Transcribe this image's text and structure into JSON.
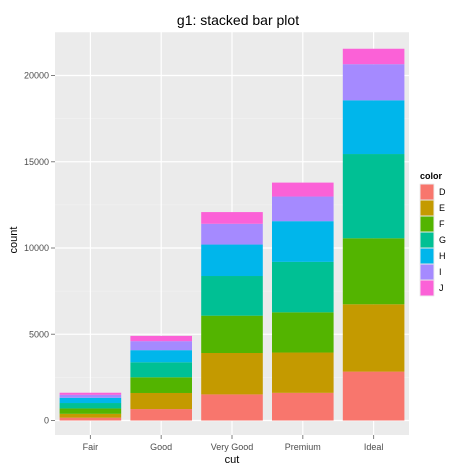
{
  "chart_data": {
    "type": "bar",
    "stacked": true,
    "title": "g1: stacked bar plot",
    "xlabel": "cut",
    "ylabel": "count",
    "categories": [
      "Fair",
      "Good",
      "Very Good",
      "Premium",
      "Ideal"
    ],
    "ylim": [
      0,
      22500
    ],
    "yticks": [
      0,
      5000,
      10000,
      15000,
      20000
    ],
    "ytick_labels": [
      "0",
      "5000",
      "10000",
      "15000",
      "20000"
    ],
    "grid": true,
    "legend_title": "color",
    "legend_position": "right",
    "series": [
      {
        "name": "D",
        "color": "#F8766D",
        "values": [
          163,
          662,
          1513,
          1603,
          2834
        ]
      },
      {
        "name": "E",
        "color": "#C49A00",
        "values": [
          224,
          933,
          2400,
          2337,
          3903
        ]
      },
      {
        "name": "F",
        "color": "#53B400",
        "values": [
          312,
          909,
          2164,
          2331,
          3826
        ]
      },
      {
        "name": "G",
        "color": "#00C094",
        "values": [
          314,
          871,
          2299,
          2924,
          4884
        ]
      },
      {
        "name": "H",
        "color": "#00B6EB",
        "values": [
          303,
          702,
          1824,
          2360,
          3115
        ]
      },
      {
        "name": "I",
        "color": "#A58AFF",
        "values": [
          175,
          522,
          1204,
          1428,
          2093
        ]
      },
      {
        "name": "J",
        "color": "#FB61D7",
        "values": [
          119,
          307,
          678,
          808,
          896
        ]
      }
    ]
  }
}
